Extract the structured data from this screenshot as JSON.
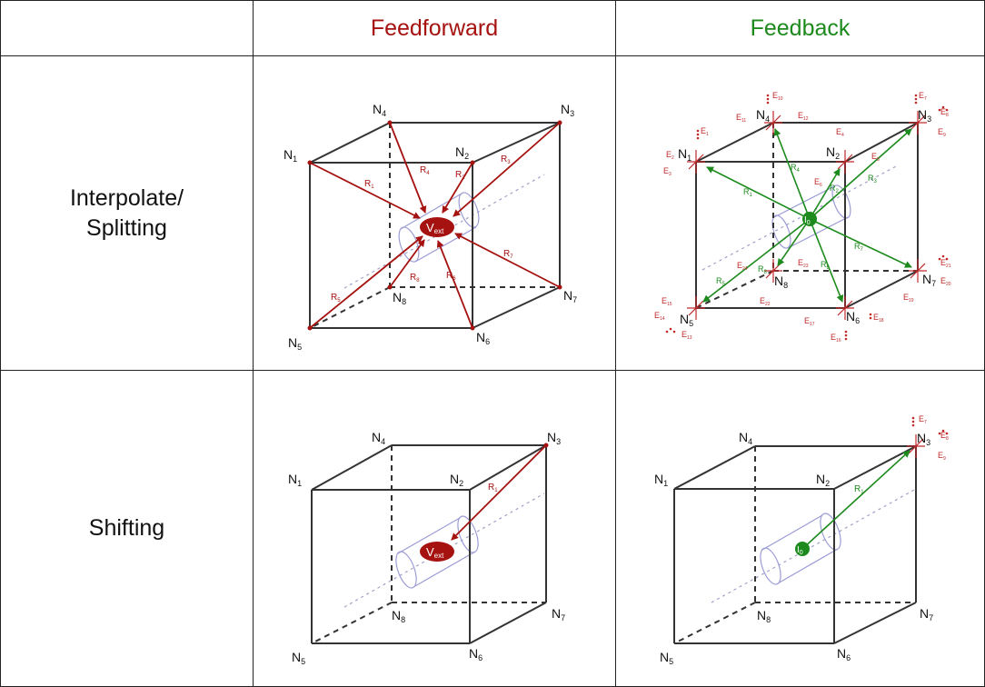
{
  "header": {
    "feedforward": "Feedforward",
    "feedback": "Feedback"
  },
  "rows": {
    "interpolate": {
      "line1": "Interpolate/",
      "line2": "Splitting"
    },
    "shifting": {
      "label": "Shifting"
    }
  },
  "nodes": {
    "n1": {
      "main": "N",
      "sub": "1"
    },
    "n2": {
      "main": "N",
      "sub": "2"
    },
    "n3": {
      "main": "N",
      "sub": "3"
    },
    "n4": {
      "main": "N",
      "sub": "4"
    },
    "n5": {
      "main": "N",
      "sub": "5"
    },
    "n6": {
      "main": "N",
      "sub": "6"
    },
    "n7": {
      "main": "N",
      "sub": "7"
    },
    "n8": {
      "main": "N",
      "sub": "8"
    }
  },
  "source_ff": {
    "main": "V",
    "sub": "ext"
  },
  "source_fb": {
    "main": "I",
    "sub": "0"
  },
  "r_labels": {
    "r1": {
      "main": "R",
      "sub": "1"
    },
    "r2": {
      "main": "R",
      "sub": "2"
    },
    "r3": {
      "main": "R",
      "sub": "3"
    },
    "r4": {
      "main": "R",
      "sub": "4"
    },
    "r5": {
      "main": "R",
      "sub": "5"
    },
    "r6": {
      "main": "R",
      "sub": "6"
    },
    "r7": {
      "main": "R",
      "sub": "7"
    },
    "r8": {
      "main": "R",
      "sub": "8"
    }
  },
  "e_labels": {
    "e1": {
      "main": "E",
      "sub": "1"
    },
    "e2": {
      "main": "E",
      "sub": "2"
    },
    "e3": {
      "main": "E",
      "sub": "3"
    },
    "e4": {
      "main": "E",
      "sub": "4"
    },
    "e5": {
      "main": "E",
      "sub": "5"
    },
    "e6": {
      "main": "E",
      "sub": "6"
    },
    "e7": {
      "main": "E",
      "sub": "7"
    },
    "e8": {
      "main": "E",
      "sub": "8"
    },
    "e9": {
      "main": "E",
      "sub": "9"
    },
    "e10": {
      "main": "E",
      "sub": "10"
    },
    "e11": {
      "main": "E",
      "sub": "11"
    },
    "e12": {
      "main": "E",
      "sub": "12"
    },
    "e13": {
      "main": "E",
      "sub": "13"
    },
    "e14": {
      "main": "E",
      "sub": "14"
    },
    "e15": {
      "main": "E",
      "sub": "15"
    },
    "e16": {
      "main": "E",
      "sub": "16"
    },
    "e17": {
      "main": "E",
      "sub": "17"
    },
    "e18": {
      "main": "E",
      "sub": "18"
    },
    "e19": {
      "main": "E",
      "sub": "19"
    },
    "e20": {
      "main": "E",
      "sub": "20"
    },
    "e21": {
      "main": "E",
      "sub": "21"
    },
    "e22": {
      "main": "E",
      "sub": "22"
    },
    "e23": {
      "main": "E",
      "sub": "23"
    },
    "e24": {
      "main": "E",
      "sub": "24"
    }
  },
  "colors": {
    "feedforward": "#a5120f",
    "feedback": "#1d8a1d",
    "cube": "#333333",
    "cylinder": "#9c9cd6",
    "axis": "#a0a0c8"
  }
}
